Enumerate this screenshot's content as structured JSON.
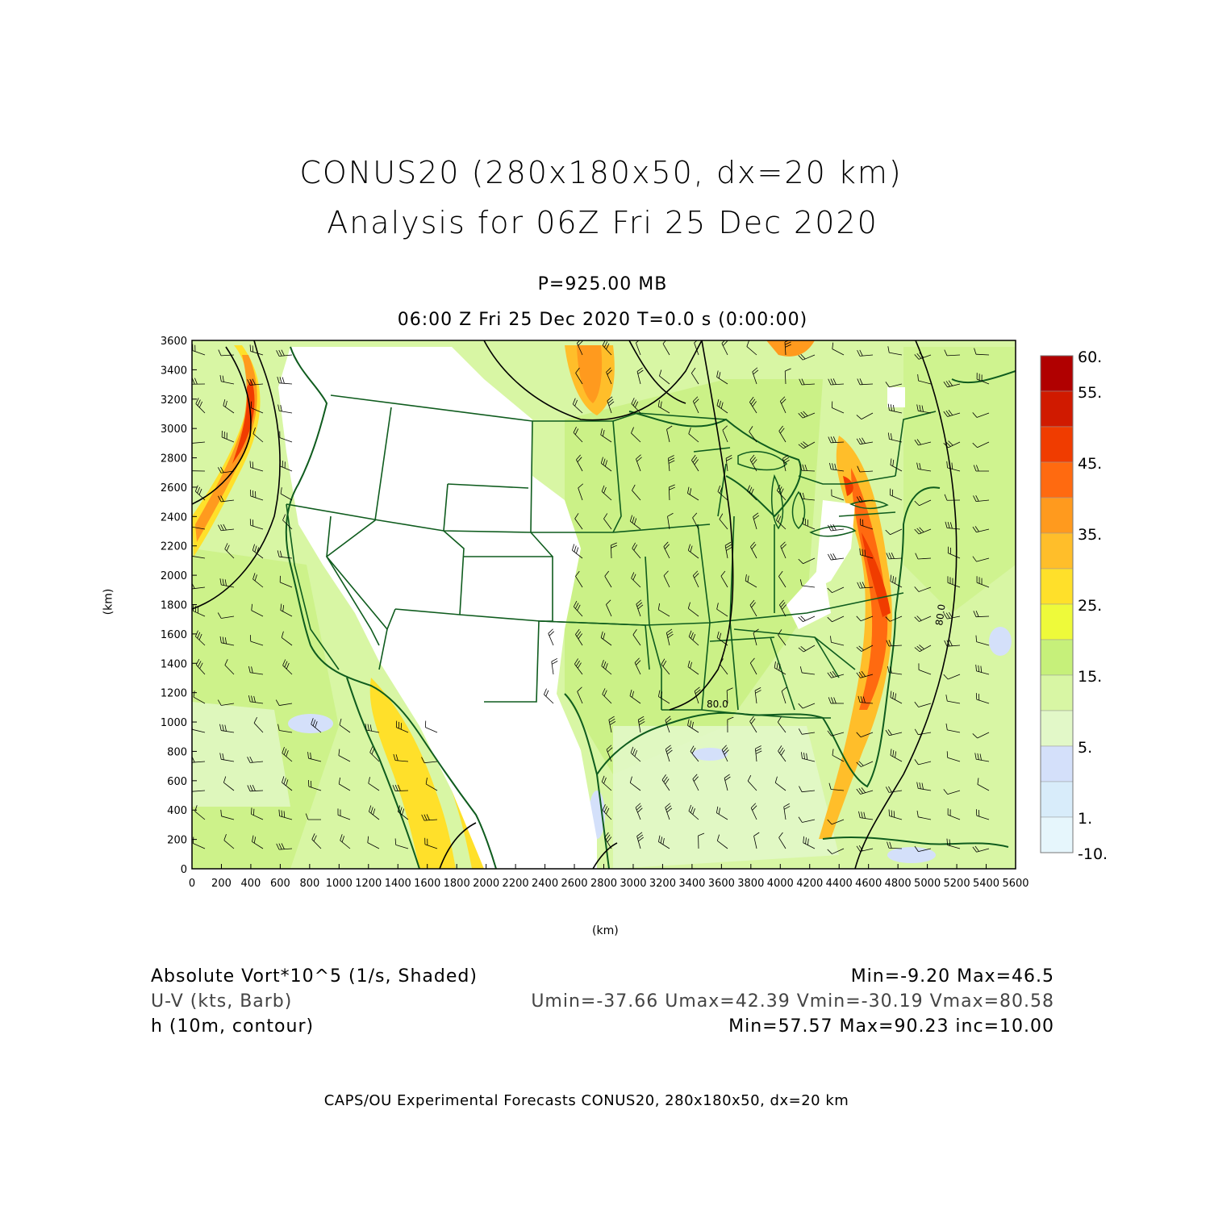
{
  "title": {
    "line1": "CONUS20 (280x180x50, dx=20 km)",
    "line2": "Analysis for 06Z Fri 25 Dec 2020"
  },
  "subtitle": {
    "level": "P=925.00 MB",
    "time": "06:00 Z Fri 25 Dec 2020    T=0.0 s (0:00:00)"
  },
  "map": {
    "x_axis_label": "(km)",
    "y_axis_label": "(km)",
    "x_ticks": [
      0,
      200,
      400,
      600,
      800,
      1000,
      1200,
      1400,
      1600,
      1800,
      2000,
      2200,
      2400,
      2600,
      2800,
      3000,
      3200,
      3400,
      3600,
      3800,
      4000,
      4200,
      4400,
      4600,
      4800,
      5000,
      5200,
      5400,
      5600
    ],
    "y_ticks": [
      0,
      200,
      400,
      600,
      800,
      1000,
      1200,
      1400,
      1600,
      1800,
      2000,
      2200,
      2400,
      2600,
      2800,
      3000,
      3200,
      3400,
      3600
    ],
    "x_range": [
      0,
      5600
    ],
    "y_range": [
      0,
      3600
    ],
    "contour_labels": [
      "80.0",
      "80.0"
    ],
    "colors": {
      "land_outline": "#0f5c1e",
      "background_field": "#d8f6b0",
      "no_data": "#ffffff",
      "contour": "#000000"
    }
  },
  "colorbar": {
    "labels": [
      "60.",
      "55.",
      "45.",
      "35.",
      "25.",
      "15.",
      "5.",
      "1.",
      "-10."
    ],
    "colors": [
      "#b00000",
      "#d01a00",
      "#f03c00",
      "#ff6a10",
      "#ff9a1e",
      "#ffbe2a",
      "#ffe02a",
      "#eefa3a",
      "#c6f07a",
      "#d8f6a4",
      "#e2f8c8",
      "#d4e0fa",
      "#d8ecfa",
      "#e6f6fc"
    ]
  },
  "legend": {
    "field1_name": "Absolute Vort*10^5 (1/s, Shaded)",
    "field1_stats": "Min=-9.20 Max=46.5",
    "field2_name": "U-V (kts, Barb)",
    "field2_stats": "Umin=-37.66 Umax=42.39 Vmin=-30.19 Vmax=80.58",
    "field3_name": "h (10m, contour)",
    "field3_stats": "Min=57.57 Max=90.23 inc=10.00"
  },
  "footer": "CAPS/OU Experimental Forecasts  CONUS20, 280x180x50, dx=20 km"
}
